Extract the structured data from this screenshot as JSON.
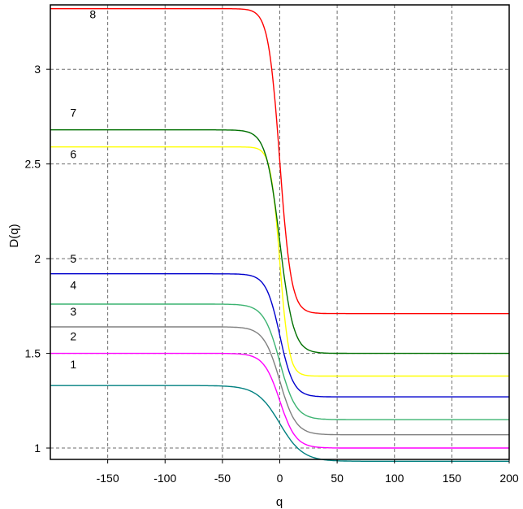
{
  "chart_data": {
    "type": "line",
    "xlabel": "q",
    "ylabel": "D(q)",
    "xlim": [
      -200,
      200
    ],
    "ylim": [
      0.94,
      3.34
    ],
    "x_ticks": [
      -150,
      -100,
      -50,
      0,
      50,
      100,
      150,
      200
    ],
    "y_ticks": [
      1,
      1.5,
      2,
      2.5,
      3
    ],
    "grid": true,
    "legend": "none",
    "series": [
      {
        "name": "1",
        "color": "#008080",
        "left": 1.33,
        "right": 0.93,
        "width": 10,
        "label_x": -180,
        "label_y": 1.42
      },
      {
        "name": "2",
        "color": "#ff00ff",
        "left": 1.5,
        "right": 1.0,
        "width": 7,
        "label_x": -180,
        "label_y": 1.57
      },
      {
        "name": "3",
        "color": "#808080",
        "left": 1.64,
        "right": 1.07,
        "width": 7,
        "label_x": -180,
        "label_y": 1.7
      },
      {
        "name": "4",
        "color": "#3cb371",
        "left": 1.76,
        "right": 1.15,
        "width": 7,
        "label_x": -180,
        "label_y": 1.84
      },
      {
        "name": "5",
        "color": "#0000cd",
        "left": 1.92,
        "right": 1.27,
        "width": 6,
        "label_x": -180,
        "label_y": 1.98
      },
      {
        "name": "6",
        "color": "#ffff00",
        "left": 2.59,
        "right": 1.38,
        "width": 4,
        "label_x": -180,
        "label_y": 2.53
      },
      {
        "name": "7",
        "color": "#007000",
        "left": 2.68,
        "right": 1.5,
        "width": 6,
        "label_x": -180,
        "label_y": 2.75
      },
      {
        "name": "8",
        "color": "#ff0000",
        "left": 3.32,
        "right": 1.71,
        "width": 5,
        "label_x": -163,
        "label_y": 3.27
      }
    ]
  }
}
